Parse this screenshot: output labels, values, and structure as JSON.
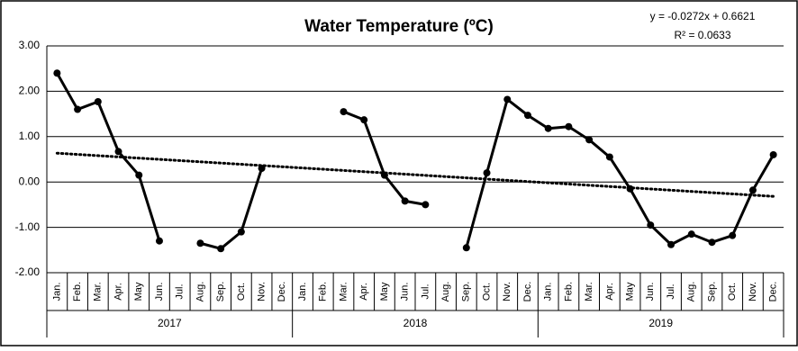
{
  "chart_data": {
    "type": "line",
    "title": "Water Temperature (ºC)",
    "categories": [
      "Jan.",
      "Feb.",
      "Mar.",
      "Apr.",
      "May",
      "Jun.",
      "Jul.",
      "Aug.",
      "Sep.",
      "Oct.",
      "Nov.",
      "Dec.",
      "Jan.",
      "Feb.",
      "Mar.",
      "Apr.",
      "May",
      "Jun.",
      "Jul.",
      "Aug.",
      "Sep.",
      "Oct.",
      "Nov.",
      "Dec.",
      "Jan.",
      "Feb.",
      "Mar.",
      "Apr.",
      "May",
      "Jun.",
      "Jul.",
      "Aug.",
      "Sep.",
      "Oct.",
      "Nov.",
      "Dec."
    ],
    "groups": [
      "2017",
      "2018",
      "2019"
    ],
    "series": [
      {
        "color": "#000000",
        "values": [
          2.4,
          1.6,
          1.77,
          0.67,
          0.15,
          -1.3,
          null,
          -1.35,
          -1.47,
          -1.1,
          0.3,
          null,
          null,
          null,
          1.55,
          1.37,
          0.15,
          -0.42,
          -0.5,
          null,
          -1.45,
          0.2,
          1.82,
          1.47,
          1.18,
          1.22,
          0.93,
          0.55,
          -0.15,
          -0.95,
          -1.38,
          -1.15,
          -1.33,
          -1.18,
          -0.18,
          0.6
        ]
      }
    ],
    "trendline": {
      "slope": -0.0272,
      "intercept": 0.6621,
      "label": "y = -0.0272x + 0.6621",
      "r2_label": "R² = 0.0633"
    },
    "ylim": [
      -2,
      3
    ],
    "yticks": [
      {
        "value": -2,
        "label": "-2.00"
      },
      {
        "value": -1,
        "label": "-1.00"
      },
      {
        "value": 0,
        "label": "0.00"
      },
      {
        "value": 1,
        "label": "1.00"
      },
      {
        "value": 2,
        "label": "2.00"
      },
      {
        "value": 3,
        "label": "3.00"
      }
    ],
    "grid": true
  }
}
